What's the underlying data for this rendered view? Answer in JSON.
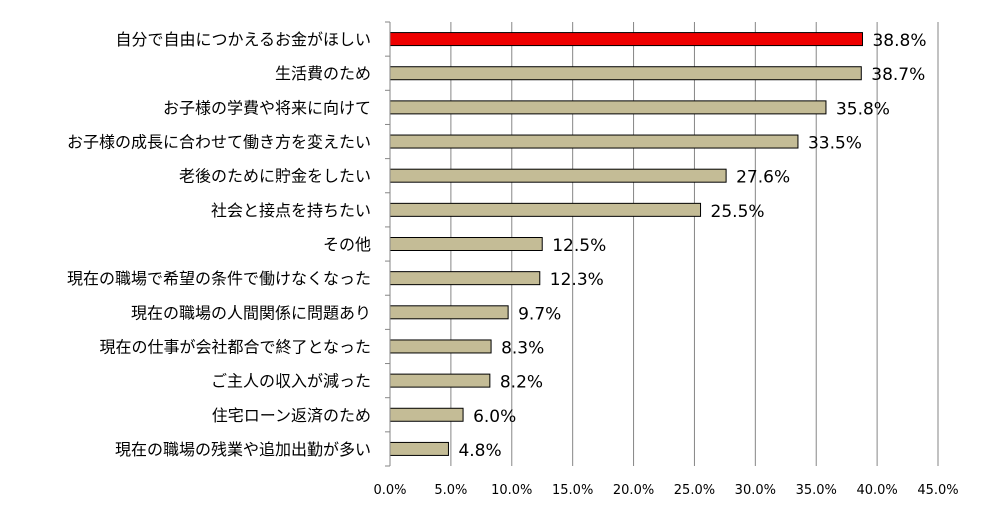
{
  "chart_data": {
    "type": "bar",
    "orientation": "horizontal",
    "categories": [
      "自分で自由につかえるお金がほしい",
      "生活費のため",
      "お子様の学費や将来に向けて",
      "お子様の成長に合わせて働き方を変えたい",
      "老後のために貯金をしたい",
      "社会と接点を持ちたい",
      "その他",
      "現在の職場で希望の条件で働けなくなった",
      "現在の職場の人間関係に問題あり",
      "現在の仕事が会社都合で終了となった",
      "ご主人の収入が減った",
      "住宅ローン返済のため",
      "現在の職場の残業や追加出勤が多い"
    ],
    "values": [
      38.8,
      38.7,
      35.8,
      33.5,
      27.6,
      25.5,
      12.5,
      12.3,
      9.7,
      8.3,
      8.2,
      6.0,
      4.8
    ],
    "value_labels": [
      "38.8%",
      "38.7%",
      "35.8%",
      "33.5%",
      "27.6%",
      "25.5%",
      "12.5%",
      "12.3%",
      "9.7%",
      "8.3%",
      "8.2%",
      "6.0%",
      "4.8%"
    ],
    "xlim": [
      0,
      45
    ],
    "ticks": [
      0,
      5,
      10,
      15,
      20,
      25,
      30,
      35,
      40,
      45
    ],
    "tick_labels": [
      "0.0%",
      "5.0%",
      "10.0%",
      "15.0%",
      "20.0%",
      "25.0%",
      "30.0%",
      "35.0%",
      "40.0%",
      "45.0%"
    ],
    "title": "",
    "xlabel": "",
    "ylabel": "",
    "grid": "vertical",
    "legend": "none",
    "colors": {
      "highlight": "#ee0000",
      "bar": "#c4bc96",
      "bar_border": "#000000",
      "grid": "#868686"
    },
    "highlight_index": 0
  }
}
